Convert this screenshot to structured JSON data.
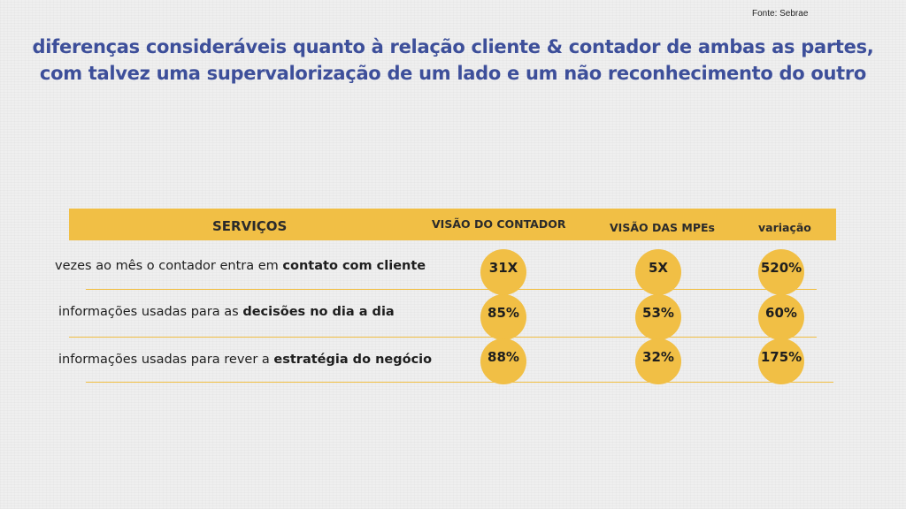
{
  "source": "Fonte: Sebrae",
  "title": {
    "line1": "diferenças consideráveis quanto à relação cliente & contador de ambas as partes,",
    "line2": "com talvez uma supervalorização de um lado e um não reconhecimento do outro"
  },
  "colors": {
    "accent": "#f1bf45",
    "title": "#3d4f9a",
    "background": "#efefef"
  },
  "table": {
    "headers": {
      "services": "SERVIÇOS",
      "contador": "VISÃO DO CONTADOR",
      "mpes": "VISÃO DAS MPEs",
      "variation": "variação"
    },
    "rows": [
      {
        "label_plain": "vezes ao mês o contador entra em ",
        "label_bold": "contato com cliente",
        "contador": "31X",
        "mpes": "5X",
        "variation": "520%"
      },
      {
        "label_plain": "informações usadas para as ",
        "label_bold": "decisões no dia a dia",
        "contador": "85%",
        "mpes": "53%",
        "variation": "60%"
      },
      {
        "label_plain": "informações usadas para rever a ",
        "label_bold": "estratégia do negócio",
        "contador": "88%",
        "mpes": "32%",
        "variation": "175%"
      }
    ]
  }
}
